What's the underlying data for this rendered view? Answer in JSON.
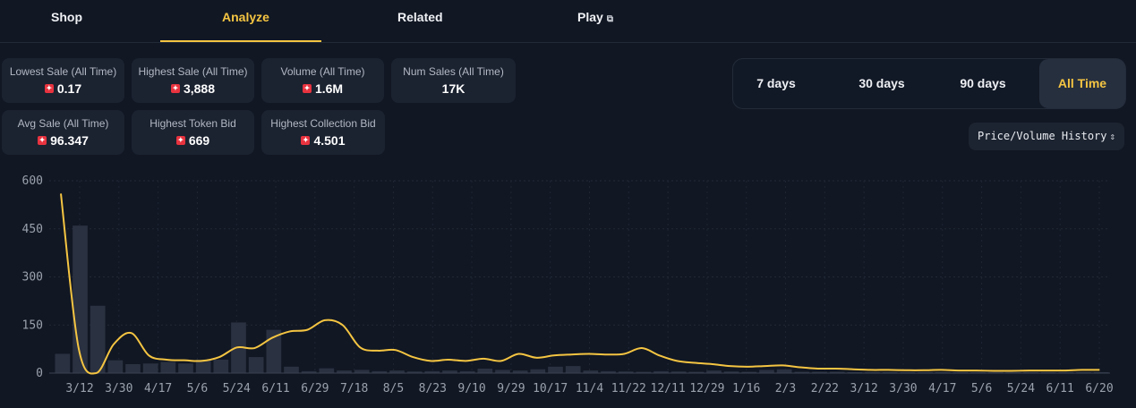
{
  "nav": {
    "tabs": [
      {
        "label": "Shop"
      },
      {
        "label": "Analyze",
        "active": true
      },
      {
        "label": "Related"
      },
      {
        "label": "Play",
        "icon": "external-link-icon"
      }
    ]
  },
  "stats": [
    {
      "label": "Lowest Sale (All Time)",
      "value": "0.17"
    },
    {
      "label": "Highest Sale (All Time)",
      "value": "3,888"
    },
    {
      "label": "Volume (All Time)",
      "value": "1.6M"
    },
    {
      "label": "Num Sales (All Time)",
      "value": "17K"
    },
    {
      "label": "Avg Sale (All Time)",
      "value": "96.347"
    },
    {
      "label": "Highest Token Bid",
      "value": "669"
    },
    {
      "label": "Highest Collection Bid",
      "value": "4.501"
    }
  ],
  "currency_icon": "token-coin-icon",
  "ranges": [
    {
      "label": "7 days"
    },
    {
      "label": "30 days"
    },
    {
      "label": "90 days"
    },
    {
      "label": "All Time",
      "active": true
    }
  ],
  "select": {
    "value": "Price/Volume History",
    "icon": "chevron-updown-icon"
  },
  "colors": {
    "accent": "#f5c542",
    "background": "#111723",
    "bar": "#2a3140",
    "coin": "#e8333f"
  },
  "chart_data": {
    "type": "bar+line",
    "ylim": [
      0,
      600
    ],
    "yticks": [
      0,
      150,
      300,
      450,
      600
    ],
    "xticks": [
      "3/12",
      "3/30",
      "4/17",
      "5/6",
      "5/24",
      "6/11",
      "6/29",
      "7/18",
      "8/5",
      "8/23",
      "9/10",
      "9/29",
      "10/17",
      "11/4",
      "11/22",
      "12/11",
      "12/29",
      "1/16",
      "2/3",
      "2/22",
      "3/12",
      "3/30",
      "4/17",
      "5/6",
      "5/24",
      "6/11",
      "6/20"
    ],
    "grid": true,
    "bars": [
      60,
      460,
      210,
      40,
      28,
      30,
      35,
      30,
      42,
      42,
      158,
      50,
      135,
      20,
      6,
      15,
      8,
      10,
      6,
      8,
      5,
      6,
      8,
      6,
      14,
      10,
      8,
      12,
      20,
      22,
      8,
      6,
      5,
      4,
      6,
      5,
      4,
      8,
      5,
      4,
      10,
      12,
      4,
      4,
      4,
      3,
      3,
      3,
      3,
      3,
      3,
      3,
      3,
      3,
      3,
      3,
      3,
      3,
      3,
      3
    ],
    "line": [
      560,
      80,
      0,
      90,
      125,
      55,
      42,
      40,
      38,
      50,
      80,
      78,
      110,
      130,
      135,
      165,
      150,
      80,
      70,
      72,
      50,
      38,
      42,
      38,
      45,
      38,
      60,
      48,
      55,
      58,
      60,
      58,
      60,
      78,
      55,
      38,
      32,
      28,
      22,
      20,
      22,
      24,
      18,
      14,
      14,
      12,
      10,
      10,
      9,
      9,
      10,
      8,
      8,
      7,
      7,
      8,
      8,
      8,
      10,
      10
    ]
  }
}
